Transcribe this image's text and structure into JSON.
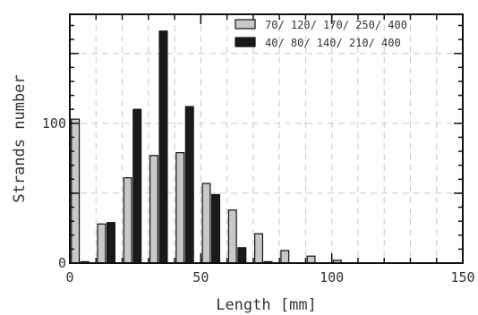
{
  "chart_data": {
    "type": "bar",
    "xlabel": "Length [mm]",
    "ylabel": "Strands number",
    "xlim": [
      0,
      150
    ],
    "ylim": [
      0,
      178
    ],
    "xticks": [
      0,
      50,
      100,
      150
    ],
    "yticks": [
      0,
      100
    ],
    "grid": true,
    "legend_position": "top-right",
    "bin_width": 10,
    "series": [
      {
        "name": "70/ 120/ 170/ 250/ 400",
        "color": "#c8c8c8",
        "x": [
          0,
          10,
          20,
          30,
          40,
          50,
          60,
          70,
          80,
          90,
          100
        ],
        "values": [
          103,
          28,
          61,
          77,
          79,
          57,
          38,
          21,
          9,
          5,
          2
        ]
      },
      {
        "name": "40/ 80/ 140/ 210/ 400",
        "color": "#1a1a1a",
        "x": [
          0,
          10,
          20,
          30,
          40,
          50,
          60,
          70,
          80,
          90,
          100
        ],
        "values": [
          1,
          29,
          110,
          166,
          112,
          49,
          11,
          1,
          0,
          0,
          0
        ]
      }
    ]
  }
}
